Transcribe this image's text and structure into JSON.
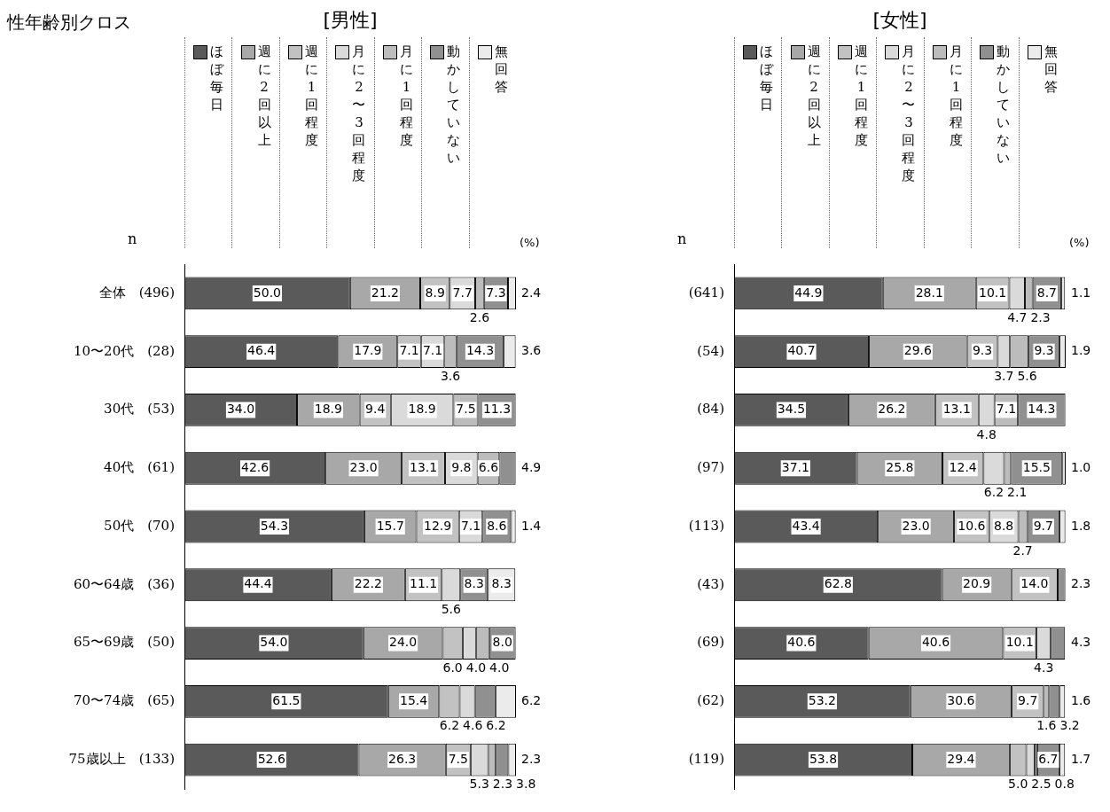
{
  "chart_data": [
    {
      "type": "bar",
      "orientation": "horizontal",
      "stacked": true,
      "title": "[男性]",
      "categories": [
        "全体　(496)",
        "10〜20代　(28)",
        "30代　(53)",
        "40代　(61)",
        "50代　(70)",
        "60〜64歳　(36)",
        "65〜69歳　(50)",
        "70〜74歳　(65)",
        "75歳以上　(133)"
      ],
      "series": [
        {
          "name": "ほぼ毎日",
          "color": "#5a5a5a",
          "values": [
            50.0,
            46.4,
            34.0,
            42.6,
            54.3,
            44.4,
            54.0,
            61.5,
            52.6
          ],
          "value_labels": [
            "50.0",
            "46.4",
            "34.0",
            "42.6",
            "54.3",
            "44.4",
            "54.0",
            "61.5",
            "52.6"
          ]
        },
        {
          "name": "週に2回以上",
          "color": "#a8a8a8",
          "values": [
            21.2,
            17.9,
            18.9,
            23.0,
            15.7,
            22.2,
            24.0,
            15.4,
            26.3
          ],
          "value_labels": [
            "21.2",
            "17.9",
            "18.9",
            "23.0",
            "15.7",
            "22.2",
            "24.0",
            "15.4",
            "26.3"
          ]
        },
        {
          "name": "週に1回程度",
          "color": "#c2c2c2",
          "values": [
            8.9,
            7.1,
            9.4,
            13.1,
            12.9,
            11.1,
            6.0,
            6.2,
            7.5
          ],
          "value_labels": [
            "8.9",
            "7.1",
            "9.4",
            "13.1",
            "12.9",
            "11.1",
            "6.0",
            "6.2",
            "7.5"
          ]
        },
        {
          "name": "月に2〜3回程度",
          "color": "#dadada",
          "values": [
            7.7,
            7.1,
            18.9,
            9.8,
            7.1,
            5.6,
            4.0,
            4.6,
            5.3
          ],
          "value_labels": [
            "7.7",
            "7.1",
            "18.9",
            "9.8",
            "7.1",
            "5.6",
            "4.0",
            "4.6",
            "5.3"
          ]
        },
        {
          "name": "月に1回程度",
          "color": "#bcbcbc",
          "values": [
            2.6,
            3.6,
            7.5,
            6.6,
            null,
            null,
            4.0,
            null,
            2.3
          ],
          "value_labels": [
            "2.6",
            "3.6",
            "7.5",
            "6.6",
            null,
            null,
            "4.0",
            null,
            "2.3"
          ]
        },
        {
          "name": "動かしていない",
          "color": "#909090",
          "values": [
            7.3,
            14.3,
            11.3,
            4.9,
            8.6,
            8.3,
            8.0,
            6.2,
            3.8
          ],
          "value_labels": [
            "7.3",
            "14.3",
            "11.3",
            "4.9",
            "8.6",
            "8.3",
            "8.0",
            "6.2",
            "3.8"
          ]
        },
        {
          "name": "無回答",
          "color": "#ebebeb",
          "values": [
            2.4,
            3.6,
            null,
            null,
            1.4,
            8.3,
            null,
            6.2,
            2.3
          ],
          "value_labels": [
            "2.4",
            "3.6",
            null,
            null,
            "1.4",
            "8.3",
            null,
            "6.2",
            "2.3"
          ]
        }
      ],
      "xlim": [
        0,
        100.1
      ],
      "tick_labels": "y",
      "grid": false,
      "legend": "top",
      "annotations": [
        "性年齢別クロス",
        "n",
        "(%)"
      ]
    },
    {
      "type": "bar",
      "orientation": "horizontal",
      "stacked": true,
      "title": "[女性]",
      "categories": [
        "(641)",
        "(54)",
        "(84)",
        "(97)",
        "(113)",
        "(43)",
        "(69)",
        "(62)",
        "(119)"
      ],
      "series": [
        {
          "name": "ほぼ毎日",
          "color": "#5a5a5a",
          "values": [
            44.9,
            40.7,
            34.5,
            37.1,
            43.4,
            62.8,
            40.6,
            53.2,
            53.8
          ],
          "value_labels": [
            "44.9",
            "40.7",
            "34.5",
            "37.1",
            "43.4",
            "62.8",
            "40.6",
            "53.2",
            "53.8"
          ]
        },
        {
          "name": "週に2回以上",
          "color": "#a8a8a8",
          "values": [
            28.1,
            29.6,
            26.2,
            25.8,
            23.0,
            20.9,
            40.6,
            30.6,
            29.4
          ],
          "value_labels": [
            "28.1",
            "29.6",
            "26.2",
            "25.8",
            "23.0",
            "20.9",
            "40.6",
            "30.6",
            "29.4"
          ]
        },
        {
          "name": "週に1回程度",
          "color": "#c2c2c2",
          "values": [
            10.1,
            9.3,
            13.1,
            12.4,
            10.6,
            14.0,
            10.1,
            9.7,
            5.0
          ],
          "value_labels": [
            "10.1",
            "9.3",
            "13.1",
            "12.4",
            "10.6",
            "14.0",
            "10.1",
            "9.7",
            "5.0"
          ]
        },
        {
          "name": "月に2〜3回程度",
          "color": "#dadada",
          "values": [
            4.7,
            3.7,
            4.8,
            6.2,
            8.8,
            null,
            4.3,
            null,
            2.5
          ],
          "value_labels": [
            "4.7",
            "3.7",
            "4.8",
            "6.2",
            "8.8",
            null,
            "4.3",
            null,
            "2.5"
          ]
        },
        {
          "name": "月に1回程度",
          "color": "#bcbcbc",
          "values": [
            2.3,
            5.6,
            7.1,
            2.1,
            2.7,
            null,
            null,
            1.6,
            0.8
          ],
          "value_labels": [
            "2.3",
            "5.6",
            "7.1",
            "2.1",
            "2.7",
            null,
            null,
            "1.6",
            "0.8"
          ]
        },
        {
          "name": "動かしていない",
          "color": "#909090",
          "values": [
            8.7,
            9.3,
            14.3,
            15.5,
            9.7,
            2.3,
            4.3,
            3.2,
            6.7
          ],
          "value_labels": [
            "8.7",
            "9.3",
            "14.3",
            "15.5",
            "9.7",
            "2.3",
            "4.3",
            "3.2",
            "6.7"
          ]
        },
        {
          "name": "無回答",
          "color": "#ebebeb",
          "values": [
            1.1,
            1.9,
            null,
            1.0,
            1.8,
            null,
            null,
            1.6,
            1.7
          ],
          "value_labels": [
            "1.1",
            "1.9",
            null,
            "1.0",
            "1.8",
            null,
            null,
            "1.6",
            "1.7"
          ]
        }
      ],
      "xlim": [
        0,
        100.1
      ],
      "tick_labels": "y",
      "grid": false,
      "legend": "top",
      "annotations": [
        "n",
        "(%)"
      ]
    }
  ]
}
